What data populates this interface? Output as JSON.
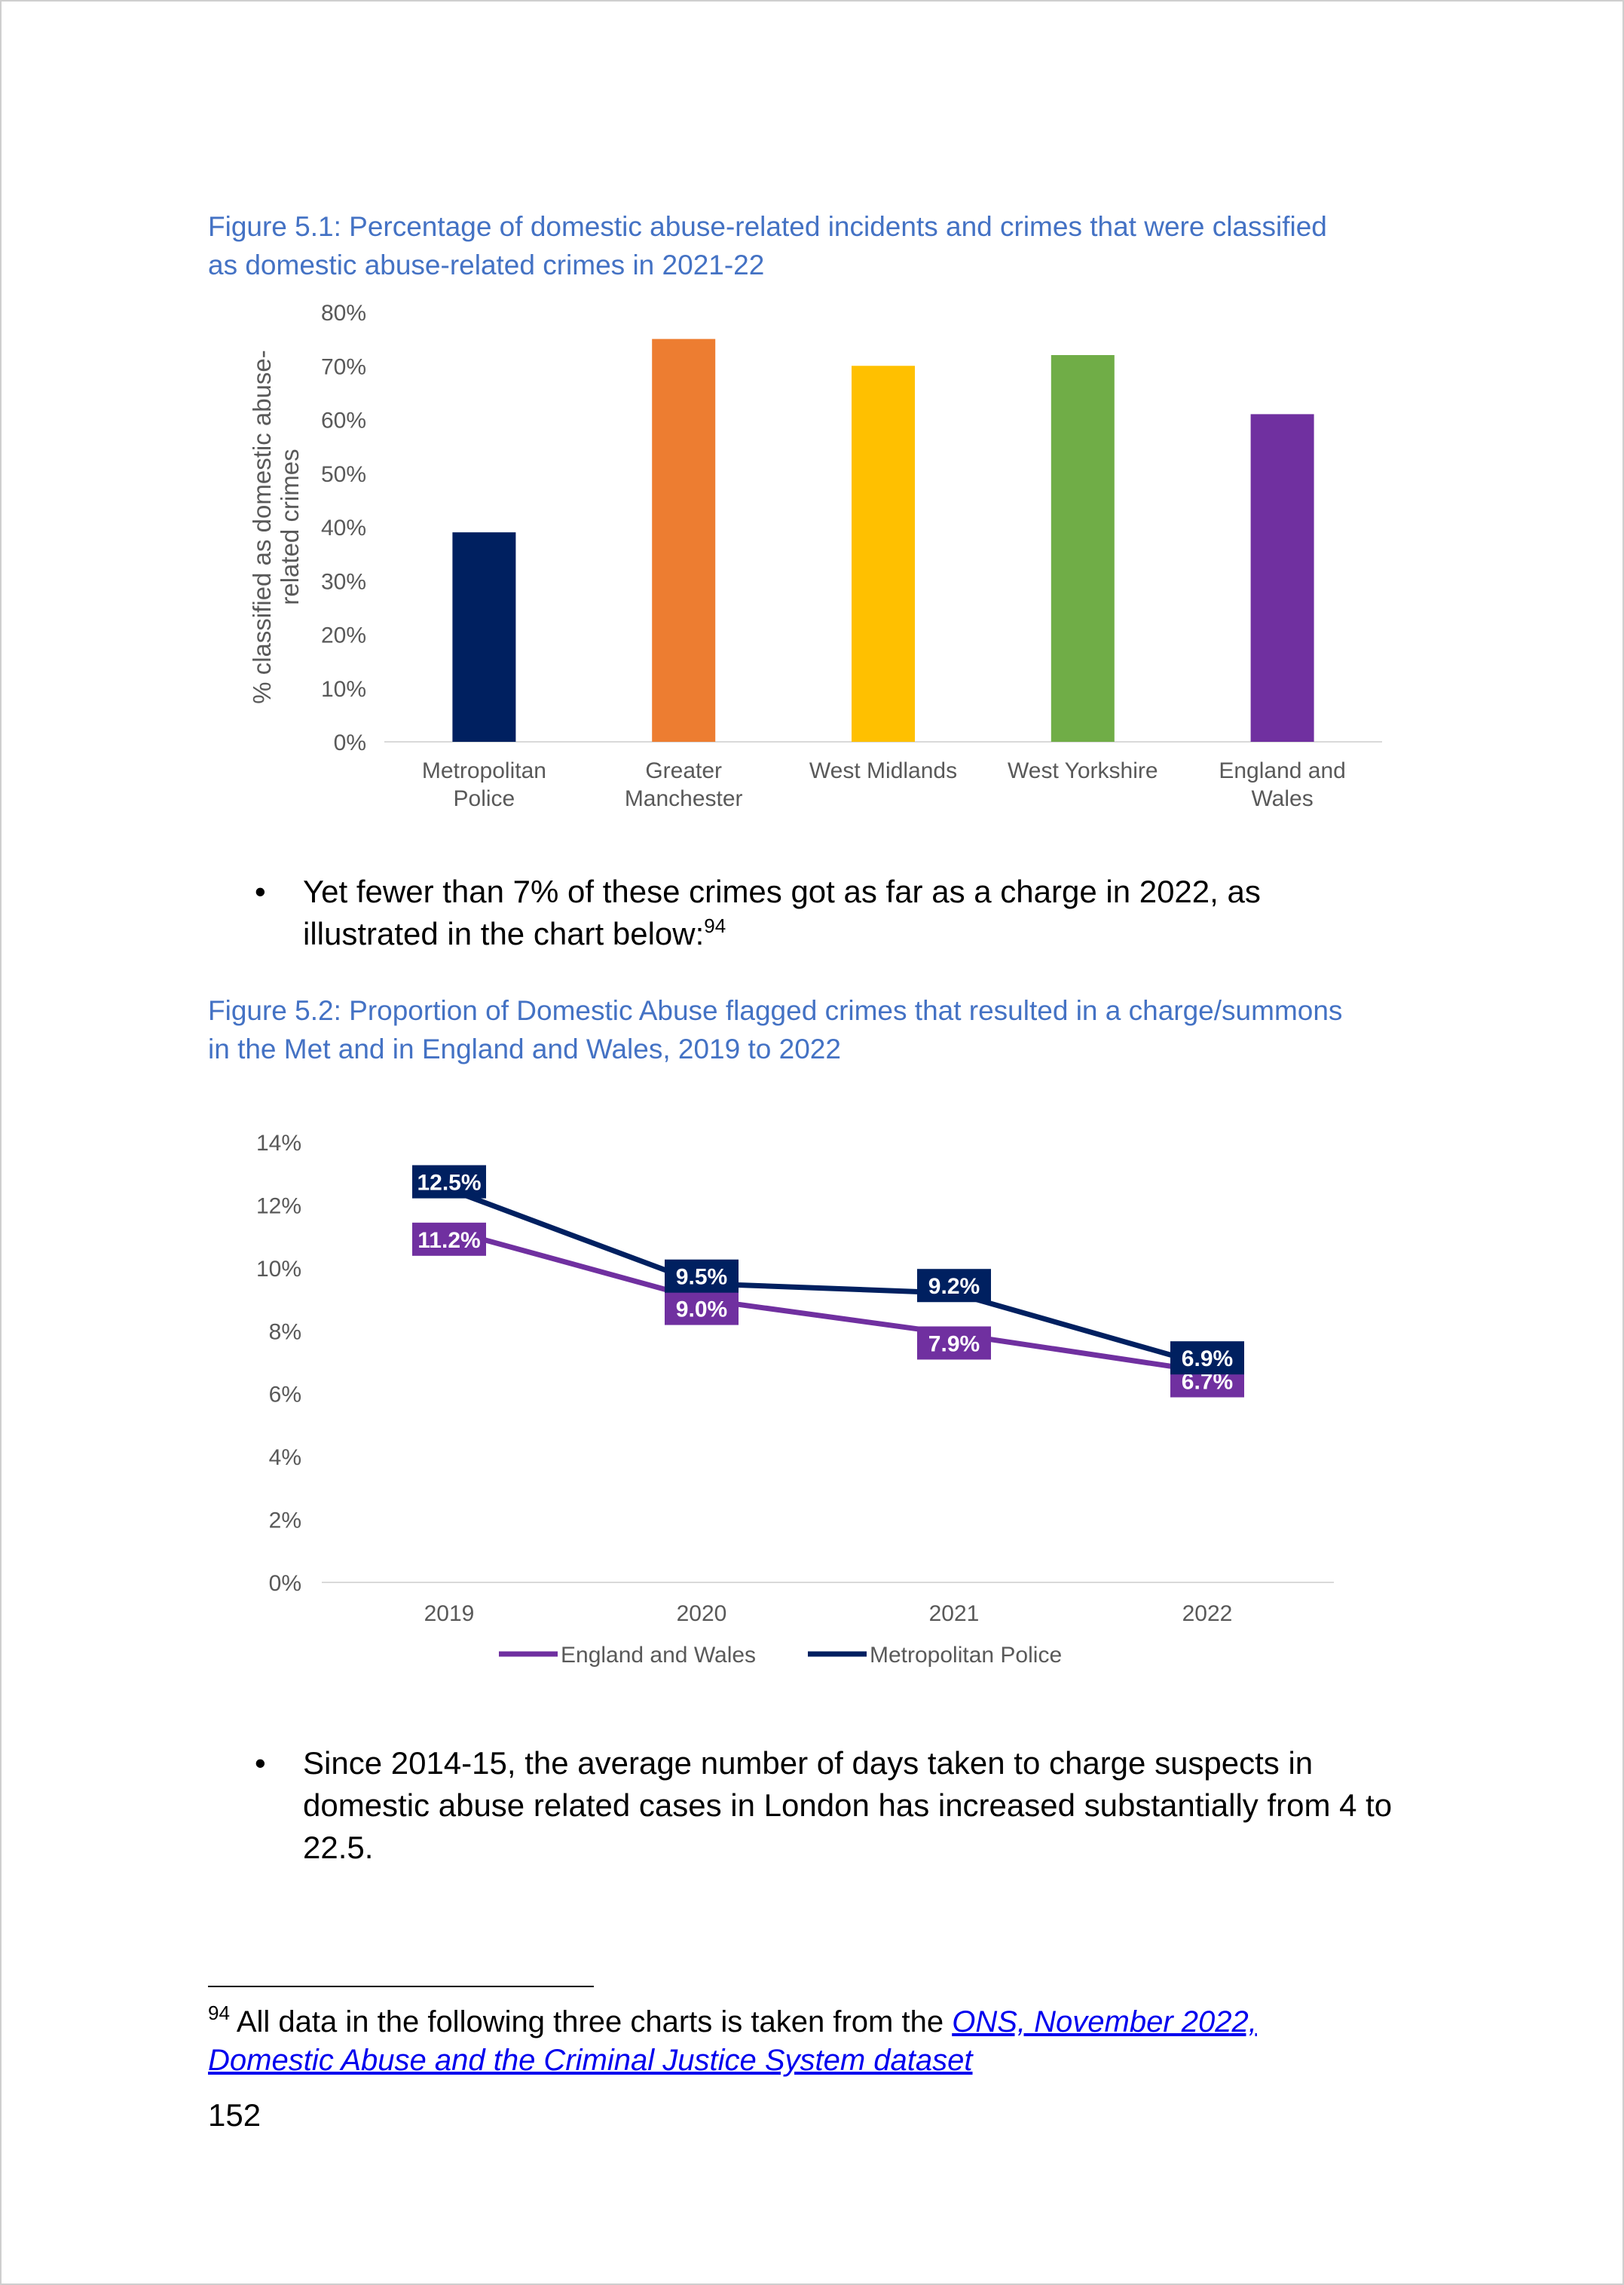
{
  "figure1": {
    "title_line1": "Figure 5.1: Percentage of domestic abuse-related incidents and crimes that were classified",
    "title_line2": "as domestic abuse-related crimes in 2021-22"
  },
  "bullet1": {
    "line1": "Yet fewer than 7% of these crimes got as far as a charge in 2022, as",
    "line2": "illustrated in the chart below:",
    "footnote_ref": "94"
  },
  "figure2": {
    "title_line1": "Figure 5.2: Proportion of Domestic Abuse flagged crimes that resulted in a charge/summons",
    "title_line2": "in the Met and in England and Wales, 2019 to 2022"
  },
  "bullet2": {
    "line1": "Since 2014-15, the average number of days taken to charge suspects in",
    "line2": "domestic abuse related cases in London has increased substantially from 4 to",
    "line3": "22.5."
  },
  "footnote": {
    "number": "94",
    "text": "All data in the following three charts is taken from the",
    "link_line1": "ONS, November 2022,",
    "link_line2": "Domestic Abuse and the Criminal Justice System dataset"
  },
  "page_number": "152",
  "chart_data": [
    {
      "type": "bar",
      "ylabel_lines": [
        "% classified as domestic abuse-",
        "related crimes"
      ],
      "categories": [
        [
          "Metropolitan",
          "Police"
        ],
        [
          "Greater",
          "Manchester"
        ],
        [
          "West Midlands"
        ],
        [
          "West Yorkshire"
        ],
        [
          "England and",
          "Wales"
        ]
      ],
      "values": [
        39,
        75,
        70,
        72,
        61
      ],
      "colors": [
        "#002060",
        "#ed7d31",
        "#ffc000",
        "#70ad47",
        "#7030a0"
      ],
      "ylim": [
        0,
        80
      ],
      "yticks": [
        "0%",
        "10%",
        "20%",
        "30%",
        "40%",
        "50%",
        "60%",
        "70%",
        "80%"
      ],
      "grid": false
    },
    {
      "type": "line",
      "x": [
        "2019",
        "2020",
        "2021",
        "2022"
      ],
      "ylim": [
        0,
        14
      ],
      "yticks": [
        "0%",
        "2%",
        "4%",
        "6%",
        "8%",
        "10%",
        "12%",
        "14%"
      ],
      "grid": false,
      "legend_position": "bottom",
      "series": [
        {
          "name": "England and Wales",
          "color": "#7030a0",
          "values": [
            11.2,
            9.0,
            7.9,
            6.7
          ],
          "labels": [
            "11.2%",
            "9.0%",
            "7.9%",
            "6.7%"
          ],
          "label_side": "below"
        },
        {
          "name": "Metropolitan Police",
          "color": "#002060",
          "values": [
            12.5,
            9.5,
            9.2,
            6.9
          ],
          "labels": [
            "12.5%",
            "9.5%",
            "9.2%",
            "6.9%"
          ],
          "label_side": "above"
        }
      ]
    }
  ]
}
